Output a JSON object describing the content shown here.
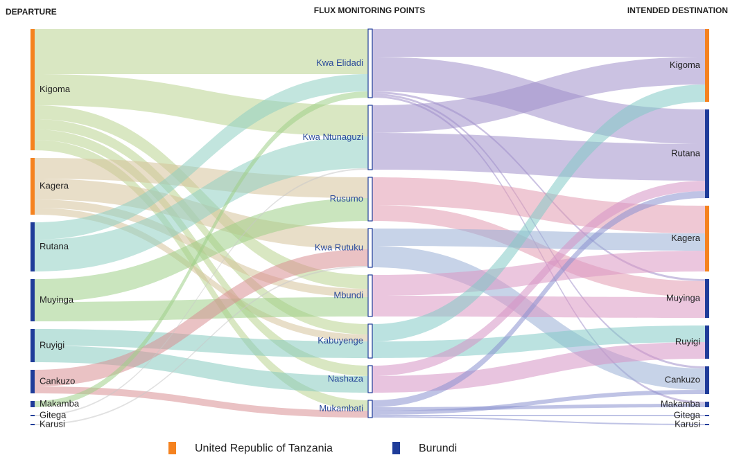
{
  "chart_data": {
    "type": "sankey",
    "column_titles": [
      "DEPARTURE",
      "FLUX MONITORING POINTS",
      "INTENDED DESTINATION"
    ],
    "legend": [
      {
        "name": "United Republic of Tanzania",
        "color": "#f5821f"
      },
      {
        "name": "Burundi",
        "color": "#1f3c99"
      }
    ],
    "nodes": {
      "departure": [
        {
          "name": "Kigoma",
          "color": "#f5821f",
          "link_color": "#b9d48f"
        },
        {
          "name": "Kagera",
          "color": "#f5821f",
          "link_color": "#d6c29b"
        },
        {
          "name": "Rutana",
          "color": "#1f3c99",
          "link_color": "#8fd0c2"
        },
        {
          "name": "Muyinga",
          "color": "#1f3c99",
          "link_color": "#9fd088"
        },
        {
          "name": "Ruyigi",
          "color": "#1f3c99",
          "link_color": "#86cbbf"
        },
        {
          "name": "Cankuzo",
          "color": "#1f3c99",
          "link_color": "#d98f94"
        },
        {
          "name": "Makamba",
          "color": "#1f3c99",
          "link_color": "#9fd088"
        },
        {
          "name": "Gitega",
          "color": "#1f3c99",
          "link_color": "#c9c9c9"
        },
        {
          "name": "Karusi",
          "color": "#1f3c99",
          "link_color": "#c9c9c9"
        }
      ],
      "monitoring_points": [
        {
          "name": "Kwa Elidadi",
          "color": "#1f3c99",
          "link_color": "#a18fcb"
        },
        {
          "name": "Kwa Ntunaguzi",
          "color": "#1f3c99",
          "link_color": "#a18fcb"
        },
        {
          "name": "Rusumo",
          "color": "#1f3c99",
          "link_color": "#e19bb0"
        },
        {
          "name": "Kwa Rutuku",
          "color": "#1f3c99",
          "link_color": "#99afd6"
        },
        {
          "name": "Mbundi",
          "color": "#1f3c99",
          "link_color": "#db98c2"
        },
        {
          "name": "Kabuyenge",
          "color": "#1f3c99",
          "link_color": "#84cbc6"
        },
        {
          "name": "Nashaza",
          "color": "#1f3c99",
          "link_color": "#d594c5"
        },
        {
          "name": "Mukambati",
          "color": "#1f3c99",
          "link_color": "#8a92d0"
        }
      ],
      "destination": [
        {
          "name": "Kigoma",
          "color": "#f5821f"
        },
        {
          "name": "Rutana",
          "color": "#1f3c99"
        },
        {
          "name": "Kagera",
          "color": "#f5821f"
        },
        {
          "name": "Muyinga",
          "color": "#1f3c99"
        },
        {
          "name": "Ruyigi",
          "color": "#1f3c99"
        },
        {
          "name": "Cankuzo",
          "color": "#1f3c99"
        },
        {
          "name": "Makamba",
          "color": "#1f3c99"
        },
        {
          "name": "Gitega",
          "color": "#1f3c99"
        },
        {
          "name": "Karusi",
          "color": "#1f3c99"
        }
      ]
    },
    "flows_in": [
      {
        "source": "Kigoma",
        "target": "Kwa Elidadi",
        "value": 65
      },
      {
        "source": "Kigoma",
        "target": "Kwa Ntunaguzi",
        "value": 45
      },
      {
        "source": "Kigoma",
        "target": "Mbundi",
        "value": 20
      },
      {
        "source": "Kigoma",
        "target": "Kabuyenge",
        "value": 15
      },
      {
        "source": "Kigoma",
        "target": "Nashaza",
        "value": 15
      },
      {
        "source": "Kigoma",
        "target": "Mukambati",
        "value": 15
      },
      {
        "source": "Kagera",
        "target": "Rusumo",
        "value": 30
      },
      {
        "source": "Kagera",
        "target": "Kwa Rutuku",
        "value": 30
      },
      {
        "source": "Kagera",
        "target": "Mbundi",
        "value": 12
      },
      {
        "source": "Kagera",
        "target": "Kabuyenge",
        "value": 10
      },
      {
        "source": "Rutana",
        "target": "Kwa Elidadi",
        "value": 25
      },
      {
        "source": "Rutana",
        "target": "Kwa Ntunaguzi",
        "value": 46
      },
      {
        "source": "Muyinga",
        "target": "Rusumo",
        "value": 33
      },
      {
        "source": "Muyinga",
        "target": "Mbundi",
        "value": 28
      },
      {
        "source": "Ruyigi",
        "target": "Kabuyenge",
        "value": 24
      },
      {
        "source": "Ruyigi",
        "target": "Nashaza",
        "value": 24
      },
      {
        "source": "Cankuzo",
        "target": "Kwa Rutuku",
        "value": 24
      },
      {
        "source": "Cankuzo",
        "target": "Mukambati",
        "value": 10
      },
      {
        "source": "Makamba",
        "target": "Kwa Elidadi",
        "value": 9
      },
      {
        "source": "Gitega",
        "target": "Kwa Ntunaguzi",
        "value": 2
      },
      {
        "source": "Karusi",
        "target": "Kwa Rutuku",
        "value": 2
      }
    ],
    "flows_out": [
      {
        "source": "Kwa Elidadi",
        "target": "Kigoma",
        "value": 40
      },
      {
        "source": "Kwa Elidadi",
        "target": "Rutana",
        "value": 50
      },
      {
        "source": "Kwa Elidadi",
        "target": "Muyinga",
        "value": 3
      },
      {
        "source": "Kwa Elidadi",
        "target": "Cankuzo",
        "value": 3
      },
      {
        "source": "Kwa Elidadi",
        "target": "Makamba",
        "value": 3
      },
      {
        "source": "Kwa Ntunaguzi",
        "target": "Kigoma",
        "value": 40
      },
      {
        "source": "Kwa Ntunaguzi",
        "target": "Rutana",
        "value": 53
      },
      {
        "source": "Rusumo",
        "target": "Kagera",
        "value": 40
      },
      {
        "source": "Rusumo",
        "target": "Muyinga",
        "value": 23
      },
      {
        "source": "Kwa Rutuku",
        "target": "Kagera",
        "value": 25
      },
      {
        "source": "Kwa Rutuku",
        "target": "Cankuzo",
        "value": 31
      },
      {
        "source": "Mbundi",
        "target": "Kagera",
        "value": 30
      },
      {
        "source": "Mbundi",
        "target": "Muyinga",
        "value": 30
      },
      {
        "source": "Kabuyenge",
        "target": "Kigoma",
        "value": 25
      },
      {
        "source": "Kabuyenge",
        "target": "Ruyigi",
        "value": 24
      },
      {
        "source": "Nashaza",
        "target": "Rutana",
        "value": 15
      },
      {
        "source": "Nashaza",
        "target": "Ruyigi",
        "value": 24
      },
      {
        "source": "Mukambati",
        "target": "Rutana",
        "value": 10
      },
      {
        "source": "Mukambati",
        "target": "Makamba",
        "value": 5
      },
      {
        "source": "Mukambati",
        "target": "Cankuzo",
        "value": 6
      },
      {
        "source": "Mukambati",
        "target": "Gitega",
        "value": 2
      },
      {
        "source": "Mukambati",
        "target": "Karusi",
        "value": 2
      }
    ]
  }
}
